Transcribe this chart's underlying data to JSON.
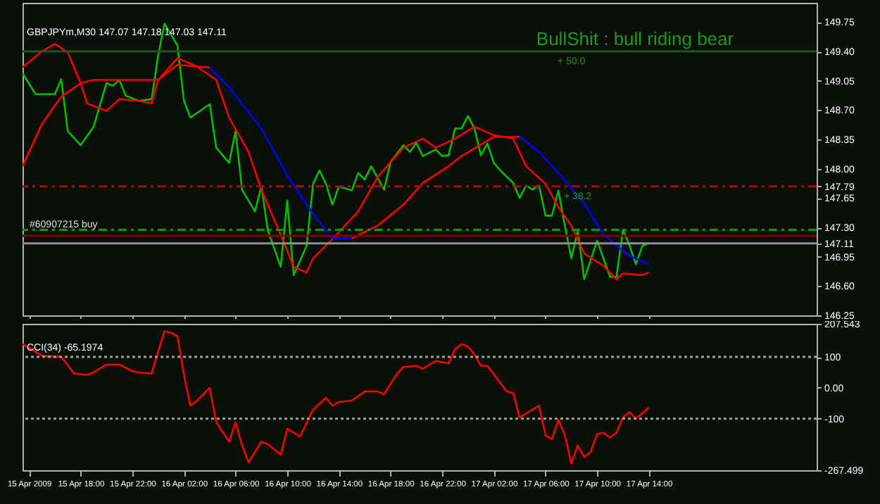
{
  "chart_data": [
    {
      "type": "line",
      "title": "GBPJPYm,M30  147.07 147.18 147.03 147.11",
      "tick_labels": "y",
      "annotations": [
        "BullShit : bull riding bear",
        {
          "text": "+ 50.0",
          "x": "2009-04-17T08:00",
          "y": 149.4
        },
        {
          "text": "+ 38.2",
          "x": "2009-04-17T08:30",
          "y": 147.79
        }
      ],
      "xlim": [
        "2009-04-15T13:30",
        "2009-04-18T03:00"
      ],
      "ylim": [
        146.25,
        149.98
      ],
      "xticks": [
        {
          "value": "2009-04-15T14:00",
          "label": null
        },
        {
          "value": "2009-04-15T18:00",
          "label": null
        },
        {
          "value": "2009-04-15T22:00",
          "label": null
        },
        {
          "value": "2009-04-16T02:00",
          "label": null
        },
        {
          "value": "2009-04-16T06:00",
          "label": null
        },
        {
          "value": "2009-04-16T10:00",
          "label": null
        },
        {
          "value": "2009-04-16T14:00",
          "label": null
        },
        {
          "value": "2009-04-16T18:00",
          "label": null
        },
        {
          "value": "2009-04-16T22:00",
          "label": null
        },
        {
          "value": "2009-04-17T02:00",
          "label": null
        },
        {
          "value": "2009-04-17T06:00",
          "label": null
        },
        {
          "value": "2009-04-17T10:00",
          "label": null
        },
        {
          "value": "2009-04-17T14:00",
          "label": null
        }
      ],
      "yticks": [
        {
          "value": 146.25,
          "label": "146.25"
        },
        {
          "value": 146.6,
          "label": "146.60"
        },
        {
          "value": 146.95,
          "label": "146.95"
        },
        {
          "value": 147.3,
          "label": "147.30"
        },
        {
          "value": 147.65,
          "label": "147.65"
        },
        {
          "value": 148,
          "label": "148.00"
        },
        {
          "value": 148.35,
          "label": "148.35"
        },
        {
          "value": 148.7,
          "label": "148.70"
        },
        {
          "value": 149.05,
          "label": "149.05"
        },
        {
          "value": 149.75,
          "label": "149.75"
        },
        {
          "value": 149.4,
          "label": "149.40"
        },
        {
          "value": 147.79,
          "label": "147.79"
        },
        {
          "value": 147.11,
          "label": "147.11"
        }
      ],
      "series": [
        {
          "color": "#00c000",
          "x": [
            "2009-04-15T13:30",
            "2009-04-15T14:30",
            "2009-04-15T16:00",
            "2009-04-15T16:30",
            "2009-04-15T17:00",
            "2009-04-15T18:00",
            "2009-04-15T19:00",
            "2009-04-15T20:00",
            "2009-04-15T20:30",
            "2009-04-15T21:00",
            "2009-04-15T21:30",
            "2009-04-15T22:30",
            "2009-04-15T23:30",
            "2009-04-16T00:00",
            "2009-04-16T00:30",
            "2009-04-16T01:30",
            "2009-04-16T02:00",
            "2009-04-16T02:30",
            "2009-04-16T04:00",
            "2009-04-16T04:30",
            "2009-04-16T05:30",
            "2009-04-16T06:00",
            "2009-04-16T06:30",
            "2009-04-16T07:30",
            "2009-04-16T08:00",
            "2009-04-16T08:30",
            "2009-04-16T09:30",
            "2009-04-16T10:00",
            "2009-04-16T10:30",
            "2009-04-16T11:30",
            "2009-04-16T12:00",
            "2009-04-16T12:30",
            "2009-04-16T13:00",
            "2009-04-16T13:30",
            "2009-04-16T14:00",
            "2009-04-16T15:00",
            "2009-04-16T15:30",
            "2009-04-16T16:00",
            "2009-04-16T16:30",
            "2009-04-16T17:30",
            "2009-04-16T18:00",
            "2009-04-16T19:00",
            "2009-04-16T19:30",
            "2009-04-16T20:00",
            "2009-04-16T20:30",
            "2009-04-16T21:30",
            "2009-04-16T22:00",
            "2009-04-16T22:30",
            "2009-04-16T23:00",
            "2009-04-16T23:30",
            "2009-04-17T00:00",
            "2009-04-17T00:30",
            "2009-04-17T01:00",
            "2009-04-17T01:30",
            "2009-04-17T02:00",
            "2009-04-17T02:30",
            "2009-04-17T03:30",
            "2009-04-17T04:00",
            "2009-04-17T04:30",
            "2009-04-17T05:00",
            "2009-04-17T05:30",
            "2009-04-17T06:00",
            "2009-04-17T06:30",
            "2009-04-17T07:00",
            "2009-04-17T07:30",
            "2009-04-17T08:00",
            "2009-04-17T08:30",
            "2009-04-17T09:00",
            "2009-04-17T10:00",
            "2009-04-17T11:00",
            "2009-04-17T11:30",
            "2009-04-17T12:00",
            "2009-04-17T12:30",
            "2009-04-17T13:00",
            "2009-04-17T13:30",
            "2009-04-17T14:00"
          ],
          "values": [
            149.14,
            148.89,
            148.89,
            149.07,
            148.45,
            148.28,
            148.5,
            149.02,
            148.99,
            149.06,
            148.87,
            148.81,
            148.83,
            149.35,
            149.73,
            149.47,
            148.81,
            148.61,
            148.77,
            148.25,
            148.07,
            148.45,
            147.75,
            147.49,
            147.79,
            147.26,
            146.83,
            147.62,
            146.73,
            147.08,
            147.82,
            147.98,
            147.82,
            147.57,
            147.79,
            147.74,
            147.95,
            147.87,
            148.03,
            147.75,
            148.08,
            148.28,
            148.2,
            148.31,
            148.15,
            148.23,
            148.15,
            148.16,
            148.48,
            148.48,
            148.63,
            148.48,
            148.16,
            148.3,
            148.07,
            147.98,
            147.83,
            147.65,
            147.8,
            147.75,
            147.8,
            147.44,
            147.44,
            147.74,
            147.32,
            146.93,
            147.26,
            146.68,
            147.14,
            146.71,
            146.71,
            147.27,
            147.09,
            146.86,
            147.08,
            147.11
          ]
        },
        {
          "color": "#ff0000",
          "x": [
            "2009-04-15T13:30",
            "2009-04-15T15:00",
            "2009-04-15T16:00",
            "2009-04-15T17:00",
            "2009-04-15T18:00",
            "2009-04-15T18:30",
            "2009-04-15T20:00",
            "2009-04-15T21:00",
            "2009-04-15T22:30",
            "2009-04-15T23:30",
            "2009-04-16T00:00",
            "2009-04-16T01:30",
            "2009-04-16T03:00",
            "2009-04-16T04:30",
            "2009-04-16T05:30",
            "2009-04-16T07:00",
            "2009-04-16T08:00",
            "2009-04-16T09:30",
            "2009-04-16T10:30",
            "2009-04-16T11:30",
            "2009-04-16T12:00",
            "2009-04-16T13:30",
            "2009-04-16T15:30",
            "2009-04-16T17:00",
            "2009-04-16T18:00",
            "2009-04-16T19:00",
            "2009-04-16T20:30",
            "2009-04-16T21:30",
            "2009-04-16T23:00",
            "2009-04-17T00:30",
            "2009-04-17T02:00",
            "2009-04-17T03:30",
            "2009-04-17T04:30",
            "2009-04-17T06:00",
            "2009-04-17T07:00",
            "2009-04-17T08:00",
            "2009-04-17T09:00",
            "2009-04-17T10:30",
            "2009-04-17T11:30",
            "2009-04-17T12:00",
            "2009-04-17T13:30",
            "2009-04-17T14:00"
          ],
          "values": [
            149.21,
            149.4,
            149.49,
            149.39,
            149.02,
            148.78,
            148.69,
            148.83,
            148.81,
            148.78,
            149.06,
            149.32,
            149.22,
            149.06,
            148.61,
            148.2,
            147.75,
            147.21,
            146.83,
            146.76,
            146.93,
            147.16,
            147.49,
            147.9,
            148.08,
            148.25,
            148.36,
            148.25,
            148.36,
            148.5,
            148.4,
            148.36,
            148.03,
            147.82,
            147.54,
            147.32,
            146.99,
            146.84,
            146.68,
            146.75,
            146.73,
            146.76
          ]
        },
        {
          "color": "#ff0000",
          "x": [
            "2009-04-15T13:30",
            "2009-04-15T15:00",
            "2009-04-15T16:30",
            "2009-04-15T18:00",
            "2009-04-15T19:00",
            "2009-04-16T00:00",
            "2009-04-16T01:30",
            "2009-04-16T03:00",
            "2009-04-16T04:00"
          ],
          "values": [
            148.03,
            148.53,
            148.86,
            149.02,
            149.06,
            149.06,
            149.24,
            149.22,
            149.21
          ]
        },
        {
          "color": "#0000ff",
          "x": [
            "2009-04-16T04:00",
            "2009-04-16T05:30",
            "2009-04-16T08:00",
            "2009-04-16T10:00",
            "2009-04-16T12:00",
            "2009-04-16T13:30",
            "2009-04-16T15:00"
          ],
          "values": [
            149.21,
            148.97,
            148.48,
            147.92,
            147.46,
            147.17,
            147.17
          ]
        },
        {
          "color": "#ff0000",
          "x": [
            "2009-04-16T15:00",
            "2009-04-16T17:00",
            "2009-04-16T19:00",
            "2009-04-16T20:30",
            "2009-04-16T22:30",
            "2009-04-16T23:30",
            "2009-04-17T02:00",
            "2009-04-17T04:00"
          ],
          "values": [
            147.17,
            147.32,
            147.57,
            147.83,
            148.03,
            148.15,
            148.38,
            148.38
          ]
        },
        {
          "color": "#0000ff",
          "x": [
            "2009-04-17T04:00",
            "2009-04-17T05:30",
            "2009-04-17T07:00",
            "2009-04-17T09:00",
            "2009-04-17T10:30",
            "2009-04-17T12:30",
            "2009-04-17T14:00"
          ],
          "values": [
            148.38,
            148.2,
            147.95,
            147.59,
            147.21,
            146.96,
            146.86
          ]
        }
      ],
      "ref_lines": [
        {
          "axis": "y",
          "value": 149.4,
          "color": "#1a5c1a",
          "line_style": "solid"
        },
        {
          "axis": "y",
          "value": 147.79,
          "color": "#a01010",
          "line_style": "dashed"
        },
        {
          "axis": "y",
          "value": 147.27,
          "label": "#60907215 buy",
          "color": "#00a000",
          "line_style": "dashed"
        },
        {
          "axis": "y",
          "value": 147.2,
          "color": "#800000",
          "line_style": "solid"
        },
        {
          "axis": "y",
          "value": 147.11,
          "color": "#909090",
          "line_style": "solid"
        }
      ]
    },
    {
      "type": "line",
      "title": "CCI(34) -65.1974",
      "xlim": [
        "2009-04-15T13:30",
        "2009-04-18T03:00"
      ],
      "ylim": [
        -267.499,
        207.543
      ],
      "xticks": [
        {
          "value": "2009-04-15T14:00",
          "label": "15 Apr 2009"
        },
        {
          "value": "2009-04-15T18:00",
          "label": "15 Apr 18:00"
        },
        {
          "value": "2009-04-15T22:00",
          "label": "15 Apr 22:00"
        },
        {
          "value": "2009-04-16T02:00",
          "label": "16 Apr 02:00"
        },
        {
          "value": "2009-04-16T06:00",
          "label": "16 Apr 06:00"
        },
        {
          "value": "2009-04-16T10:00",
          "label": "16 Apr 10:00"
        },
        {
          "value": "2009-04-16T14:00",
          "label": "16 Apr 14:00"
        },
        {
          "value": "2009-04-16T18:00",
          "label": "16 Apr 18:00"
        },
        {
          "value": "2009-04-16T22:00",
          "label": "16 Apr 22:00"
        },
        {
          "value": "2009-04-17T02:00",
          "label": "17 Apr 02:00"
        },
        {
          "value": "2009-04-17T06:00",
          "label": "17 Apr 06:00"
        },
        {
          "value": "2009-04-17T10:00",
          "label": "17 Apr 10:00"
        },
        {
          "value": "2009-04-17T14:00",
          "label": "17 Apr 14:00"
        }
      ],
      "yticks": [
        {
          "value": 207.543,
          "label": "207.543"
        },
        {
          "value": 100,
          "label": "100"
        },
        {
          "value": 0,
          "label": "0.00"
        },
        {
          "value": -100,
          "label": "-100"
        },
        {
          "value": -267.499,
          "label": "-267.499"
        }
      ],
      "series": [
        {
          "color": "#ff0000",
          "x": [
            "2009-04-15T13:30",
            "2009-04-15T15:00",
            "2009-04-15T16:30",
            "2009-04-15T17:30",
            "2009-04-15T18:30",
            "2009-04-15T19:00",
            "2009-04-15T20:00",
            "2009-04-15T21:00",
            "2009-04-15T22:00",
            "2009-04-15T22:30",
            "2009-04-15T23:30",
            "2009-04-16T00:00",
            "2009-04-16T00:30",
            "2009-04-16T01:00",
            "2009-04-16T01:30",
            "2009-04-16T02:00",
            "2009-04-16T02:30",
            "2009-04-16T03:00",
            "2009-04-16T04:00",
            "2009-04-16T04:30",
            "2009-04-16T05:30",
            "2009-04-16T06:00",
            "2009-04-16T06:30",
            "2009-04-16T07:00",
            "2009-04-16T08:00",
            "2009-04-16T08:30",
            "2009-04-16T09:30",
            "2009-04-16T10:00",
            "2009-04-16T11:00",
            "2009-04-16T12:00",
            "2009-04-16T13:00",
            "2009-04-16T13:30",
            "2009-04-16T14:00",
            "2009-04-16T15:00",
            "2009-04-16T16:00",
            "2009-04-16T17:00",
            "2009-04-16T17:30",
            "2009-04-16T18:30",
            "2009-04-16T19:00",
            "2009-04-16T20:00",
            "2009-04-16T20:30",
            "2009-04-16T21:30",
            "2009-04-16T22:30",
            "2009-04-16T23:00",
            "2009-04-16T23:30",
            "2009-04-17T00:00",
            "2009-04-17T00:30",
            "2009-04-17T01:00",
            "2009-04-17T01:30",
            "2009-04-17T03:00",
            "2009-04-17T03:30",
            "2009-04-17T04:00",
            "2009-04-17T05:30",
            "2009-04-17T06:00",
            "2009-04-17T06:30",
            "2009-04-17T07:00",
            "2009-04-17T07:30",
            "2009-04-17T08:00",
            "2009-04-17T08:30",
            "2009-04-17T09:00",
            "2009-04-17T09:30",
            "2009-04-17T10:00",
            "2009-04-17T10:30",
            "2009-04-17T11:00",
            "2009-04-17T11:30",
            "2009-04-17T12:00",
            "2009-04-17T12:30",
            "2009-04-17T13:00",
            "2009-04-17T14:00"
          ],
          "values": [
            142,
            104,
            100,
            46,
            42,
            50,
            75,
            75,
            54,
            50,
            46,
            117,
            183,
            179,
            167,
            42,
            -58,
            -42,
            0,
            -112,
            -175,
            -112,
            -187,
            -242,
            -175,
            -183,
            -217,
            -133,
            -158,
            -71,
            -33,
            -58,
            -46,
            -42,
            -12,
            -12,
            -21,
            46,
            67,
            71,
            62,
            87,
            79,
            125,
            142,
            133,
            108,
            71,
            71,
            -12,
            -17,
            -96,
            -58,
            -154,
            -167,
            -104,
            -154,
            -246,
            -187,
            -225,
            -208,
            -150,
            -146,
            -162,
            -146,
            -96,
            -79,
            -100,
            -65
          ]
        }
      ],
      "ref_lines": [
        {
          "axis": "y",
          "value": 100,
          "color": "#a0a0a0",
          "line_style": "dotted"
        },
        {
          "axis": "y",
          "value": -100,
          "color": "#a0a0a0",
          "line_style": "dotted"
        }
      ]
    }
  ]
}
